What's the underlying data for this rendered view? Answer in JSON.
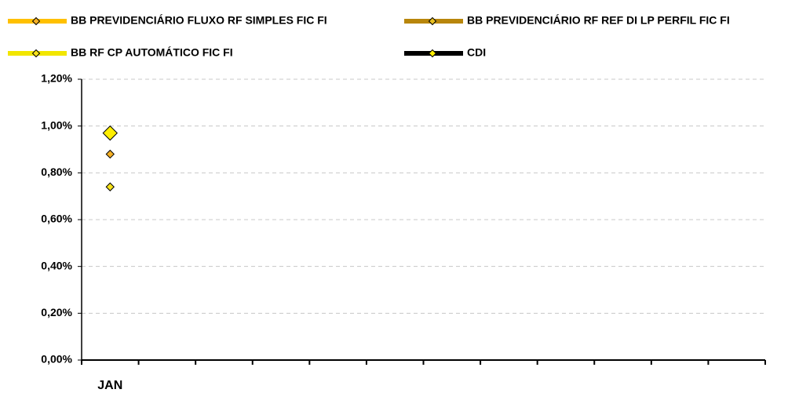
{
  "chart_data": {
    "type": "line",
    "categories": [
      "JAN",
      null,
      null,
      null,
      null,
      null,
      null,
      null,
      null,
      null,
      null,
      null
    ],
    "series": [
      {
        "name": "BB PREVIDENCIÁRIO FLUXO RF SIMPLES FIC FI",
        "color": "#ffc000",
        "marker_color": "#f5b025",
        "marker_size": 5,
        "values": [
          0.88,
          null,
          null,
          null,
          null,
          null,
          null,
          null,
          null,
          null,
          null,
          null
        ]
      },
      {
        "name": "BB PREVIDENCIÁRIO RF REF DI LP PERFIL FIC FI",
        "color": "#b8860b",
        "marker_color": "#e8c020",
        "marker_size": 5,
        "values": [
          0.97,
          null,
          null,
          null,
          null,
          null,
          null,
          null,
          null,
          null,
          null,
          null
        ]
      },
      {
        "name": "BB RF CP AUTOMÁTICO FIC FI",
        "color": "#f2e600",
        "marker_color": "#f7e21a",
        "marker_size": 5,
        "values": [
          0.74,
          null,
          null,
          null,
          null,
          null,
          null,
          null,
          null,
          null,
          null,
          null
        ]
      },
      {
        "name": "CDI",
        "color": "#000000",
        "marker_color": "#ffee00",
        "marker_size": 9,
        "values": [
          0.97,
          null,
          null,
          null,
          null,
          null,
          null,
          null,
          null,
          null,
          null,
          null
        ]
      }
    ],
    "ylim": [
      0,
      1.2
    ],
    "yticks": [
      {
        "value": 0,
        "label": "0,00%"
      },
      {
        "value": 0.2,
        "label": "0,20%"
      },
      {
        "value": 0.4,
        "label": "0,40%"
      },
      {
        "value": 0.6,
        "label": "0,60%"
      },
      {
        "value": 0.8,
        "label": "0,80%"
      },
      {
        "value": 1.0,
        "label": "1,00%"
      },
      {
        "value": 1.2,
        "label": "1,20%"
      }
    ],
    "grid": true
  }
}
